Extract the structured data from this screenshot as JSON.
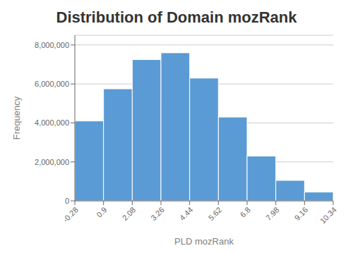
{
  "chart_data": {
    "type": "histogram",
    "title": "Distribution of Domain mozRank",
    "xlabel": "PLD mozRank",
    "ylabel": "Frequency",
    "bins": [
      -0.28,
      0.9,
      2.08,
      3.26,
      4.44,
      5.62,
      6.8,
      7.98,
      9.16,
      10.34
    ],
    "values": [
      4100000,
      5750000,
      7250000,
      7600000,
      6300000,
      4300000,
      2300000,
      1050000,
      450000
    ],
    "color": "#5b9bd5",
    "xlim": [
      -0.28,
      10.34
    ],
    "xticks": [
      -0.28,
      0.9,
      2.08,
      3.26,
      4.44,
      5.62,
      6.8,
      7.98,
      9.16,
      10.34
    ],
    "ylim": [
      0,
      8500000
    ],
    "yticks": [
      0,
      {
        "value": 2000000,
        "label": "2,000,000"
      },
      {
        "value": 4000000,
        "label": "4,000,000"
      },
      {
        "value": 6000000,
        "label": "6,000,000"
      },
      {
        "value": 8000000,
        "label": "8,000,000"
      }
    ],
    "grid": true
  }
}
